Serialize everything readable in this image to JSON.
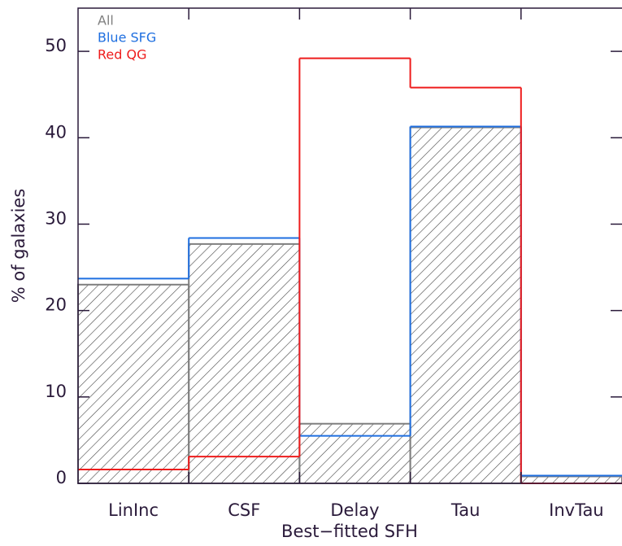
{
  "chart_data": {
    "type": "step",
    "xlabel": "Best−fitted SFH",
    "ylabel": "% of galaxies",
    "categories": [
      "LinInc",
      "CSF",
      "Delay",
      "Tau",
      "InvTau"
    ],
    "series": [
      {
        "name": "All",
        "color": "#7f7f7f",
        "hatch": true,
        "values": [
          23.0,
          27.7,
          6.9,
          41.2,
          0.8
        ]
      },
      {
        "name": "Blue SFG",
        "color": "#1f6fe0",
        "hatch": false,
        "values": [
          23.7,
          28.4,
          5.5,
          41.3,
          0.9
        ]
      },
      {
        "name": "Red QG",
        "color": "#ee1c1c",
        "hatch": false,
        "values": [
          1.6,
          3.1,
          49.2,
          45.8,
          0.0
        ]
      }
    ],
    "ylim": [
      0,
      55
    ],
    "yticks": [
      0,
      10,
      20,
      30,
      40,
      50
    ],
    "legend": "upper left"
  }
}
